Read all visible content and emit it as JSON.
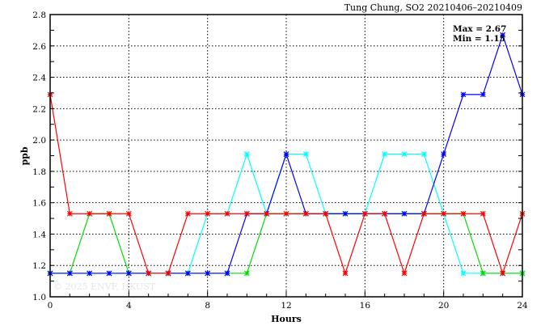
{
  "chart_data": {
    "type": "line",
    "title": "Tung Chung, SO2  20210406–20210409",
    "xlabel": "Hours",
    "ylabel": "ppb",
    "xlim": [
      0,
      24
    ],
    "ylim": [
      1.0,
      2.8
    ],
    "xticks": [
      0,
      4,
      8,
      12,
      16,
      20,
      24
    ],
    "yticks": [
      1.0,
      1.2,
      1.4,
      1.6,
      1.8,
      2.0,
      2.2,
      2.4,
      2.6,
      2.8
    ],
    "ytick_labels": [
      "1.0",
      "1.2",
      "1.4",
      "1.6",
      "1.8",
      "2.0",
      "2.2",
      "2.4",
      "2.6",
      "2.8"
    ],
    "grid": true,
    "annotations": {
      "max": "Max = 2.67",
      "min": "Min = 1.15"
    },
    "watermark": "© 2025  ENVF, HKUST",
    "x": [
      0,
      1,
      2,
      3,
      4,
      5,
      6,
      7,
      8,
      9,
      10,
      11,
      12,
      13,
      14,
      15,
      16,
      17,
      18,
      19,
      20,
      21,
      22,
      23,
      24
    ],
    "series": [
      {
        "name": "cyan",
        "color": "#00ffff",
        "values": [
          1.15,
          1.15,
          1.15,
          1.15,
          1.15,
          1.15,
          1.15,
          1.15,
          1.53,
          1.53,
          1.91,
          1.53,
          1.91,
          1.91,
          1.53,
          1.53,
          1.53,
          1.91,
          1.91,
          1.91,
          1.53,
          1.15,
          1.15,
          1.15,
          1.15
        ]
      },
      {
        "name": "green",
        "color": "#00dd00",
        "values": [
          1.15,
          1.15,
          1.53,
          1.53,
          1.15,
          1.15,
          1.15,
          1.15,
          1.15,
          1.15,
          1.15,
          1.53,
          1.53,
          1.53,
          1.53,
          1.53,
          1.53,
          1.53,
          1.53,
          1.53,
          1.53,
          1.53,
          1.15,
          1.15,
          1.15
        ]
      },
      {
        "name": "blue",
        "color": "#0000ff",
        "values": [
          1.15,
          1.15,
          1.15,
          1.15,
          1.15,
          1.15,
          1.15,
          1.15,
          1.15,
          1.15,
          1.53,
          1.53,
          1.91,
          1.53,
          1.53,
          1.53,
          1.53,
          1.53,
          1.53,
          1.53,
          1.91,
          2.29,
          2.29,
          2.67,
          2.29
        ]
      },
      {
        "name": "red",
        "color": "#ff0000",
        "values": [
          2.29,
          1.53,
          1.53,
          1.53,
          1.53,
          1.15,
          1.15,
          1.53,
          1.53,
          1.53,
          1.53,
          1.53,
          1.53,
          1.53,
          1.53,
          1.15,
          1.53,
          1.53,
          1.15,
          1.53,
          1.53,
          1.53,
          1.53,
          1.15,
          1.53
        ]
      }
    ]
  }
}
